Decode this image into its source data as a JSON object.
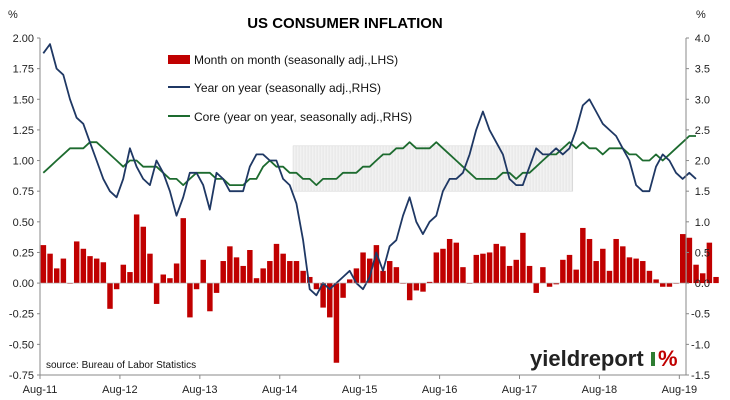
{
  "chart_data": {
    "type": "bar+line",
    "title": "US CONSUMER INFLATION",
    "left_axis_unit": "%",
    "right_axis_unit": "%",
    "left_ylim": [
      -0.75,
      2.0
    ],
    "right_ylim": [
      -1.5,
      4.0
    ],
    "left_ticks": [
      "2.00",
      "1.75",
      "1.50",
      "1.25",
      "1.00",
      "0.75",
      "0.50",
      "0.25",
      "0.00",
      "-0.25",
      "-0.50",
      "-0.75"
    ],
    "right_ticks": [
      "4.0",
      "3.5",
      "3.0",
      "2.5",
      "2.0",
      "1.5",
      "1.0",
      "0.5",
      "0.0",
      "-0.5",
      "-1.0",
      "-1.5"
    ],
    "x_ticks": [
      "Aug-11",
      "Aug-12",
      "Aug-13",
      "Aug-14",
      "Aug-15",
      "Aug-16",
      "Aug-17",
      "Aug-18",
      "Aug-19"
    ],
    "x_tick_months": [
      0,
      12,
      24,
      36,
      48,
      60,
      72,
      84,
      96
    ],
    "x_range_months": [
      0,
      97
    ],
    "grid": false,
    "shaded_band": {
      "label": "",
      "lhs_from": 0.75,
      "lhs_to": 1.12,
      "month_from": 38,
      "month_to": 80
    },
    "series": [
      {
        "name": "Month on month (seasonally adj.,LHS)",
        "type": "bar",
        "axis": "left",
        "color": "#c00000",
        "start_month": 0,
        "values": [
          0.31,
          0.24,
          0.12,
          0.2,
          0.0,
          0.34,
          0.28,
          0.22,
          0.2,
          0.17,
          -0.21,
          -0.05,
          0.15,
          0.09,
          0.56,
          0.46,
          0.24,
          -0.17,
          0.07,
          0.04,
          0.16,
          0.53,
          -0.28,
          -0.05,
          0.19,
          -0.23,
          -0.08,
          0.18,
          0.3,
          0.21,
          0.14,
          0.27,
          0.04,
          0.12,
          0.18,
          0.32,
          0.24,
          0.18,
          0.18,
          0.1,
          0.05,
          -0.05,
          -0.2,
          -0.28,
          -0.65,
          -0.12,
          0.03,
          0.12,
          0.25,
          0.2,
          0.31,
          0.1,
          0.18,
          0.13,
          0.0,
          -0.14,
          -0.06,
          -0.07,
          0.01,
          0.25,
          0.28,
          0.36,
          0.33,
          0.13,
          0.0,
          0.23,
          0.24,
          0.25,
          0.32,
          0.3,
          0.14,
          0.19,
          0.41,
          0.14,
          -0.08,
          0.13,
          -0.03,
          -0.01,
          0.19,
          0.23,
          0.11,
          0.45,
          0.36,
          0.18,
          0.28,
          0.1,
          0.36,
          0.3,
          0.21,
          0.2,
          0.18,
          0.1,
          0.03,
          -0.03,
          -0.03,
          0.0,
          0.4,
          0.37,
          0.15,
          0.08,
          0.33,
          0.05
        ]
      },
      {
        "name": "Year on year (seasonally adj.,RHS)",
        "type": "line",
        "axis": "right",
        "color": "#1f3864",
        "start_month": 0,
        "values": [
          3.75,
          3.9,
          3.5,
          3.4,
          3.0,
          2.7,
          2.6,
          2.3,
          2.0,
          1.7,
          1.5,
          1.4,
          1.7,
          2.2,
          1.9,
          1.7,
          1.6,
          2.0,
          1.8,
          1.5,
          1.1,
          1.4,
          1.8,
          1.8,
          1.6,
          1.2,
          1.8,
          1.7,
          1.5,
          1.5,
          1.5,
          1.9,
          2.1,
          2.1,
          2.0,
          2.0,
          1.7,
          1.6,
          1.3,
          0.7,
          -0.1,
          -0.2,
          0.0,
          -0.1,
          0.0,
          0.1,
          0.2,
          0.0,
          -0.1,
          0.1,
          0.5,
          0.2,
          0.6,
          0.7,
          1.1,
          1.4,
          1.0,
          0.8,
          1.0,
          1.1,
          1.5,
          1.7,
          1.7,
          1.8,
          2.1,
          2.5,
          2.8,
          2.5,
          2.3,
          2.1,
          1.7,
          1.6,
          1.6,
          1.9,
          2.2,
          2.1,
          2.1,
          2.2,
          2.1,
          2.2,
          2.5,
          2.9,
          3.0,
          2.8,
          2.6,
          2.5,
          2.4,
          2.2,
          2.0,
          1.6,
          1.5,
          1.5,
          1.9,
          2.1,
          2.0,
          1.8,
          1.7,
          1.8,
          1.7
        ]
      },
      {
        "name": "Core (year on year, seasonally adj.,RHS)",
        "type": "line",
        "axis": "right",
        "color": "#1d6b2f",
        "start_month": 0,
        "values": [
          1.8,
          1.9,
          2.0,
          2.1,
          2.2,
          2.2,
          2.2,
          2.3,
          2.3,
          2.2,
          2.1,
          2.0,
          1.9,
          2.0,
          2.0,
          1.9,
          1.9,
          1.9,
          1.8,
          1.7,
          1.7,
          1.6,
          1.7,
          1.8,
          1.8,
          1.8,
          1.7,
          1.7,
          1.6,
          1.6,
          1.6,
          1.7,
          1.7,
          1.9,
          2.0,
          1.9,
          1.9,
          1.8,
          1.8,
          1.7,
          1.7,
          1.6,
          1.7,
          1.7,
          1.7,
          1.8,
          1.8,
          1.8,
          1.9,
          1.9,
          2.0,
          2.1,
          2.1,
          2.2,
          2.2,
          2.3,
          2.2,
          2.2,
          2.2,
          2.3,
          2.2,
          2.1,
          2.0,
          1.9,
          1.8,
          1.7,
          1.7,
          1.7,
          1.7,
          1.8,
          1.8,
          1.7,
          1.8,
          1.8,
          1.9,
          2.0,
          2.1,
          2.1,
          2.2,
          2.3,
          2.2,
          2.3,
          2.2,
          2.2,
          2.1,
          2.2,
          2.2,
          2.2,
          2.1,
          2.1,
          2.0,
          2.0,
          2.1,
          2.0,
          2.1,
          2.2,
          2.3,
          2.4,
          2.4
        ]
      }
    ],
    "legend_position": "top-center",
    "source_note": "source: Bureau of Labor Statistics",
    "logo_text": "yieldreport"
  }
}
